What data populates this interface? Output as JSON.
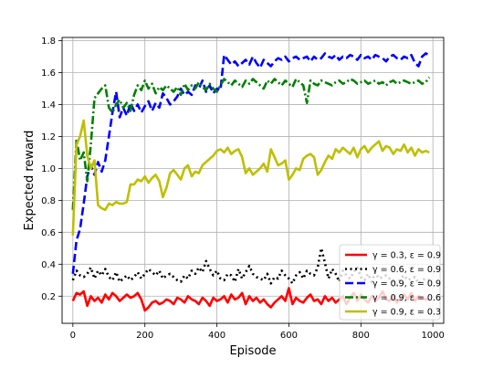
{
  "chart_data": {
    "type": "line",
    "xlabel": "Episode",
    "ylabel": "Expected reward",
    "xlim": [
      -30,
      1030
    ],
    "ylim": [
      0.03,
      1.82
    ],
    "xticks": [
      0,
      200,
      400,
      600,
      800,
      1000
    ],
    "yticks": [
      0.2,
      0.4,
      0.6,
      0.8,
      1.0,
      1.2,
      1.4,
      1.6,
      1.8
    ],
    "grid": true,
    "legend_position": "lower-right",
    "x": [
      0,
      10,
      20,
      30,
      40,
      50,
      60,
      70,
      80,
      90,
      100,
      110,
      120,
      130,
      140,
      150,
      160,
      170,
      180,
      190,
      200,
      210,
      220,
      230,
      240,
      250,
      260,
      270,
      280,
      290,
      300,
      310,
      320,
      330,
      340,
      350,
      360,
      370,
      380,
      390,
      400,
      410,
      420,
      430,
      440,
      450,
      460,
      470,
      480,
      490,
      500,
      510,
      520,
      530,
      540,
      550,
      560,
      570,
      580,
      590,
      600,
      610,
      620,
      630,
      640,
      650,
      660,
      670,
      680,
      690,
      700,
      710,
      720,
      730,
      740,
      750,
      760,
      770,
      780,
      790,
      800,
      810,
      820,
      830,
      840,
      850,
      860,
      870,
      880,
      890,
      900,
      910,
      920,
      930,
      940,
      950,
      960,
      970,
      980,
      990
    ],
    "series": [
      {
        "name": "γ = 0.3, ε = 0.9",
        "color": "#ff0000",
        "style": "solid",
        "values": [
          0.17,
          0.22,
          0.21,
          0.23,
          0.14,
          0.2,
          0.17,
          0.19,
          0.16,
          0.21,
          0.18,
          0.22,
          0.2,
          0.17,
          0.19,
          0.21,
          0.19,
          0.2,
          0.22,
          0.18,
          0.11,
          0.13,
          0.16,
          0.17,
          0.15,
          0.16,
          0.18,
          0.17,
          0.15,
          0.19,
          0.18,
          0.16,
          0.2,
          0.18,
          0.17,
          0.15,
          0.19,
          0.17,
          0.14,
          0.19,
          0.17,
          0.18,
          0.2,
          0.16,
          0.21,
          0.18,
          0.19,
          0.22,
          0.15,
          0.2,
          0.17,
          0.19,
          0.16,
          0.18,
          0.15,
          0.13,
          0.16,
          0.18,
          0.2,
          0.17,
          0.25,
          0.15,
          0.19,
          0.17,
          0.16,
          0.19,
          0.21,
          0.17,
          0.18,
          0.15,
          0.2,
          0.17,
          0.19,
          0.16,
          0.18,
          0.2,
          0.15,
          0.19,
          0.22,
          0.17,
          0.21,
          0.18,
          0.16,
          0.2,
          0.17,
          0.19,
          0.23,
          0.18,
          0.17,
          0.2,
          0.16,
          0.19,
          0.21,
          0.18,
          0.22,
          0.17,
          0.2,
          0.19,
          0.18,
          0.18
        ]
      },
      {
        "name": "γ = 0.6, ε = 0.9",
        "color": "#000000",
        "style": "dotted",
        "values": [
          0.3,
          0.36,
          0.33,
          0.32,
          0.34,
          0.38,
          0.31,
          0.36,
          0.33,
          0.37,
          0.32,
          0.3,
          0.35,
          0.29,
          0.31,
          0.33,
          0.3,
          0.32,
          0.35,
          0.31,
          0.34,
          0.37,
          0.35,
          0.33,
          0.36,
          0.31,
          0.33,
          0.34,
          0.32,
          0.3,
          0.29,
          0.33,
          0.31,
          0.36,
          0.34,
          0.38,
          0.35,
          0.42,
          0.37,
          0.33,
          0.36,
          0.31,
          0.3,
          0.34,
          0.33,
          0.29,
          0.37,
          0.31,
          0.35,
          0.39,
          0.34,
          0.32,
          0.31,
          0.3,
          0.34,
          0.28,
          0.32,
          0.31,
          0.36,
          0.33,
          0.31,
          0.28,
          0.33,
          0.35,
          0.31,
          0.36,
          0.34,
          0.33,
          0.38,
          0.5,
          0.41,
          0.31,
          0.37,
          0.34,
          0.29,
          0.36,
          0.33,
          0.31,
          0.35,
          0.38,
          0.32,
          0.3,
          0.34,
          0.29,
          0.35,
          0.31,
          0.32,
          0.33,
          0.31,
          0.29,
          0.27,
          0.31,
          0.33,
          0.3,
          0.31,
          0.32,
          0.28,
          0.3,
          0.31,
          0.3
        ]
      },
      {
        "name": "γ = 0.9, ε = 0.9",
        "color": "#0000ff",
        "style": "dashed",
        "values": [
          0.34,
          0.55,
          0.62,
          0.78,
          0.95,
          1.02,
          0.96,
          1.04,
          0.98,
          1.05,
          1.2,
          1.35,
          1.48,
          1.32,
          1.38,
          1.33,
          1.41,
          1.36,
          1.4,
          1.35,
          1.39,
          1.42,
          1.36,
          1.41,
          1.38,
          1.47,
          1.44,
          1.4,
          1.42,
          1.45,
          1.5,
          1.46,
          1.48,
          1.46,
          1.52,
          1.5,
          1.55,
          1.48,
          1.52,
          1.47,
          1.5,
          1.49,
          1.71,
          1.68,
          1.65,
          1.67,
          1.64,
          1.66,
          1.68,
          1.65,
          1.7,
          1.66,
          1.63,
          1.68,
          1.66,
          1.64,
          1.67,
          1.69,
          1.68,
          1.7,
          1.67,
          1.69,
          1.7,
          1.68,
          1.69,
          1.7,
          1.67,
          1.7,
          1.68,
          1.69,
          1.72,
          1.7,
          1.69,
          1.71,
          1.68,
          1.7,
          1.69,
          1.71,
          1.7,
          1.68,
          1.71,
          1.69,
          1.7,
          1.68,
          1.71,
          1.7,
          1.69,
          1.67,
          1.7,
          1.71,
          1.69,
          1.68,
          1.7,
          1.69,
          1.71,
          1.66,
          1.64,
          1.7,
          1.72,
          1.71
        ]
      },
      {
        "name": "γ = 0.9, ε = 0.6",
        "color": "#008000",
        "style": "dashdot",
        "values": [
          0.74,
          1.18,
          1.05,
          1.1,
          0.92,
          1.15,
          1.44,
          1.47,
          1.5,
          1.52,
          1.38,
          1.35,
          1.4,
          1.43,
          1.38,
          1.41,
          1.36,
          1.46,
          1.52,
          1.49,
          1.55,
          1.5,
          1.53,
          1.47,
          1.51,
          1.49,
          1.52,
          1.5,
          1.48,
          1.51,
          1.46,
          1.53,
          1.49,
          1.52,
          1.5,
          1.54,
          1.51,
          1.49,
          1.53,
          1.5,
          1.48,
          1.52,
          1.56,
          1.54,
          1.52,
          1.55,
          1.53,
          1.51,
          1.55,
          1.53,
          1.56,
          1.54,
          1.52,
          1.5,
          1.55,
          1.53,
          1.56,
          1.54,
          1.52,
          1.55,
          1.53,
          1.51,
          1.56,
          1.54,
          1.52,
          1.41,
          1.55,
          1.53,
          1.52,
          1.55,
          1.54,
          1.53,
          1.52,
          1.54,
          1.55,
          1.53,
          1.54,
          1.56,
          1.55,
          1.53,
          1.54,
          1.55,
          1.53,
          1.54,
          1.55,
          1.53,
          1.54,
          1.52,
          1.54,
          1.55,
          1.53,
          1.54,
          1.55,
          1.54,
          1.53,
          1.54,
          1.55,
          1.53,
          1.54,
          1.57
        ]
      },
      {
        "name": "γ = 0.9, ε = 0.3",
        "color": "#bfbf00",
        "style": "solid",
        "values": [
          0.58,
          1.15,
          1.2,
          1.3,
          1.08,
          1.0,
          1.05,
          0.77,
          0.75,
          0.74,
          0.78,
          0.77,
          0.79,
          0.78,
          0.78,
          0.79,
          0.9,
          0.9,
          0.93,
          0.92,
          0.95,
          0.91,
          0.94,
          0.96,
          0.92,
          0.82,
          0.88,
          0.97,
          0.99,
          0.96,
          0.93,
          1.0,
          1.02,
          0.95,
          0.98,
          0.97,
          1.02,
          1.04,
          1.06,
          1.08,
          1.11,
          1.12,
          1.1,
          1.13,
          1.09,
          1.11,
          1.12,
          1.07,
          0.97,
          1.0,
          0.96,
          0.98,
          1.0,
          1.03,
          0.98,
          1.12,
          1.07,
          1.02,
          1.03,
          1.05,
          0.93,
          0.96,
          1.0,
          0.99,
          1.06,
          1.08,
          1.09,
          1.07,
          0.96,
          0.99,
          1.04,
          1.08,
          1.06,
          1.12,
          1.1,
          1.13,
          1.11,
          1.09,
          1.13,
          1.07,
          1.12,
          1.14,
          1.1,
          1.13,
          1.15,
          1.17,
          1.11,
          1.14,
          1.13,
          1.09,
          1.12,
          1.11,
          1.15,
          1.1,
          1.13,
          1.08,
          1.12,
          1.1,
          1.11,
          1.1
        ]
      }
    ]
  }
}
